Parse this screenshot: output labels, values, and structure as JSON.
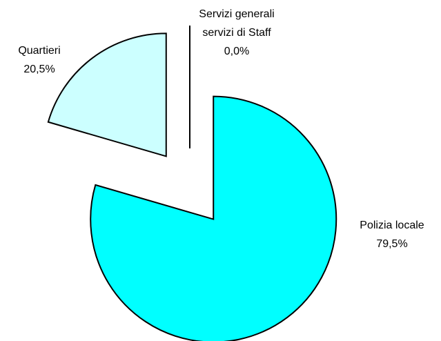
{
  "chart_data": {
    "type": "pie",
    "categories": [
      "Polizia locale",
      "Quartieri",
      "Servizi generali servizi di Staff"
    ],
    "values": [
      79.5,
      20.5,
      0.0
    ],
    "value_labels": [
      "79,5%",
      "20,5%",
      "0,0%"
    ],
    "colors": [
      "#00ffff",
      "#ccffff",
      "#ffffff"
    ]
  }
}
